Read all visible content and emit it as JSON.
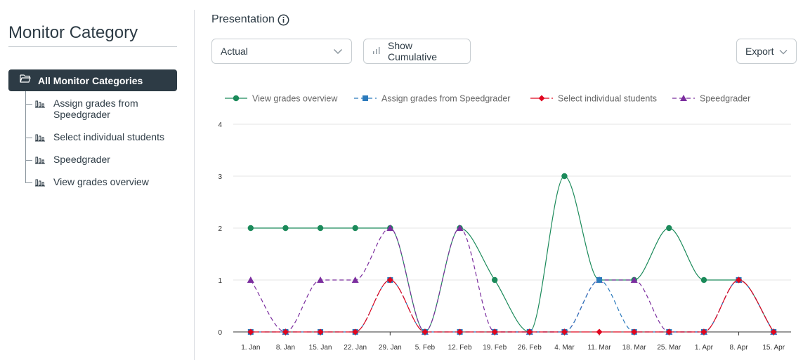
{
  "sidebar": {
    "title": "Monitor Category",
    "root": {
      "label": "All Monitor Categories",
      "icon": "folder-open-icon"
    },
    "children": [
      {
        "label": "Assign grades from Speedgrader",
        "icon": "bar-chart-icon"
      },
      {
        "label": "Select individual students",
        "icon": "bar-chart-icon"
      },
      {
        "label": "Speedgrader",
        "icon": "bar-chart-icon"
      },
      {
        "label": "View grades overview",
        "icon": "bar-chart-icon"
      }
    ]
  },
  "main": {
    "title": "Presentation",
    "select": {
      "value": "Actual"
    },
    "show_cumulative_label": "Show Cumulative",
    "export_label": "Export"
  },
  "chart_data": {
    "type": "line",
    "categories": [
      "1. Jan",
      "8. Jan",
      "15. Jan",
      "22. Jan",
      "29. Jan",
      "5. Feb",
      "12. Feb",
      "19. Feb",
      "26. Feb",
      "4. Mar",
      "11. Mar",
      "18. Mar",
      "25. Mar",
      "1. Apr",
      "8. Apr",
      "15. Apr"
    ],
    "ylim": [
      0,
      4
    ],
    "yticks": [
      "0",
      "1",
      "2",
      "3",
      "4"
    ],
    "grid": true,
    "legend_position": "top",
    "series": [
      {
        "name": "View grades overview",
        "color": "#1b8a5a",
        "marker": "circle",
        "dash": "solid",
        "values": [
          2,
          2,
          2,
          2,
          2,
          0,
          2,
          1,
          0,
          3,
          1,
          1,
          2,
          1,
          1,
          0
        ]
      },
      {
        "name": "Assign grades from Speedgrader",
        "color": "#2b7abc",
        "marker": "square",
        "dash": "dashed",
        "values": [
          0,
          0,
          0,
          0,
          1,
          0,
          0,
          0,
          0,
          0,
          1,
          0,
          0,
          0,
          1,
          0
        ]
      },
      {
        "name": "Select individual students",
        "color": "#e0061f",
        "marker": "diamond",
        "dash": "long-dash",
        "values": [
          0,
          0,
          0,
          0,
          1,
          0,
          0,
          0,
          0,
          0,
          0,
          0,
          0,
          0,
          1,
          0
        ]
      },
      {
        "name": "Speedgrader",
        "color": "#7b2d9e",
        "marker": "triangle",
        "dash": "dashed",
        "values": [
          1,
          0,
          1,
          1,
          2,
          0,
          2,
          0,
          0,
          0,
          1,
          1,
          0,
          0,
          1,
          0
        ]
      }
    ]
  }
}
